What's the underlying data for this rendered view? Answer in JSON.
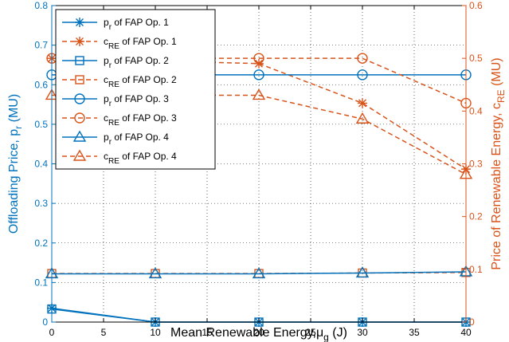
{
  "chart_data": {
    "type": "line",
    "x": [
      0,
      10,
      20,
      30,
      40
    ],
    "xlim": [
      0,
      40
    ],
    "xticks": [
      0,
      5,
      10,
      15,
      20,
      25,
      30,
      35,
      40
    ],
    "xlabel": "Mean Renewable Energy,",
    "xlabel_symbol": "μ",
    "xlabel_sub": "g",
    "xlabel_unit": " (J)",
    "ylabel_left": "Offloading Price, p",
    "ylabel_left_sub": "r",
    "ylabel_left_unit": " (MU)",
    "ylim_left": [
      0,
      0.8
    ],
    "yticks_left": [
      0,
      0.1,
      0.2,
      0.3,
      0.4,
      0.5,
      0.6,
      0.7,
      0.8
    ],
    "ylabel_right": "Price of Renewable Energy, c",
    "ylabel_right_sub": "RE",
    "ylabel_right_unit": " (MU)",
    "ylim_right": [
      0,
      0.6
    ],
    "yticks_right": [
      0,
      0.1,
      0.2,
      0.3,
      0.4,
      0.5,
      0.6
    ],
    "grid": true,
    "legend_position": "top-left",
    "colors": {
      "left": "#0072BD",
      "right": "#D95319"
    },
    "series": [
      {
        "name_main": "p",
        "name_sub": "r",
        "name_rest": " of FAP Op. 1",
        "axis": "left",
        "marker": "star",
        "style": "solid",
        "values": [
          0.035,
          0.0,
          0.0,
          0.0,
          0.0
        ]
      },
      {
        "name_main": "c",
        "name_sub": "RE",
        "name_rest": " of FAP Op. 1",
        "axis": "right",
        "marker": "star",
        "style": "dashed",
        "values": [
          0.5,
          0.495,
          0.49,
          0.415,
          0.29
        ]
      },
      {
        "name_main": "p",
        "name_sub": "r",
        "name_rest": " of FAP Op. 2",
        "axis": "left",
        "marker": "square",
        "style": "solid",
        "values": [
          0.033,
          0.0,
          0.0,
          0.0,
          0.0
        ]
      },
      {
        "name_main": "c",
        "name_sub": "RE",
        "name_rest": " of FAP Op. 2",
        "axis": "right",
        "marker": "square",
        "style": "dashed",
        "values": [
          0.092,
          0.092,
          0.092,
          0.093,
          0.094
        ]
      },
      {
        "name_main": "p",
        "name_sub": "r",
        "name_rest": " of FAP Op. 3",
        "axis": "left",
        "marker": "circle",
        "style": "solid",
        "values": [
          0.625,
          0.625,
          0.625,
          0.625,
          0.625
        ]
      },
      {
        "name_main": "c",
        "name_sub": "RE",
        "name_rest": " of FAP Op. 3",
        "axis": "right",
        "marker": "circle",
        "style": "dashed",
        "values": [
          0.5,
          0.5,
          0.5,
          0.5,
          0.415
        ]
      },
      {
        "name_main": "p",
        "name_sub": "r",
        "name_rest": " of FAP Op. 4",
        "axis": "left",
        "marker": "triangle",
        "style": "solid",
        "values": [
          0.122,
          0.122,
          0.122,
          0.124,
          0.127
        ]
      },
      {
        "name_main": "c",
        "name_sub": "RE",
        "name_rest": " of FAP Op. 4",
        "axis": "right",
        "marker": "triangle",
        "style": "dashed",
        "values": [
          0.43,
          0.43,
          0.43,
          0.385,
          0.28
        ]
      }
    ]
  }
}
